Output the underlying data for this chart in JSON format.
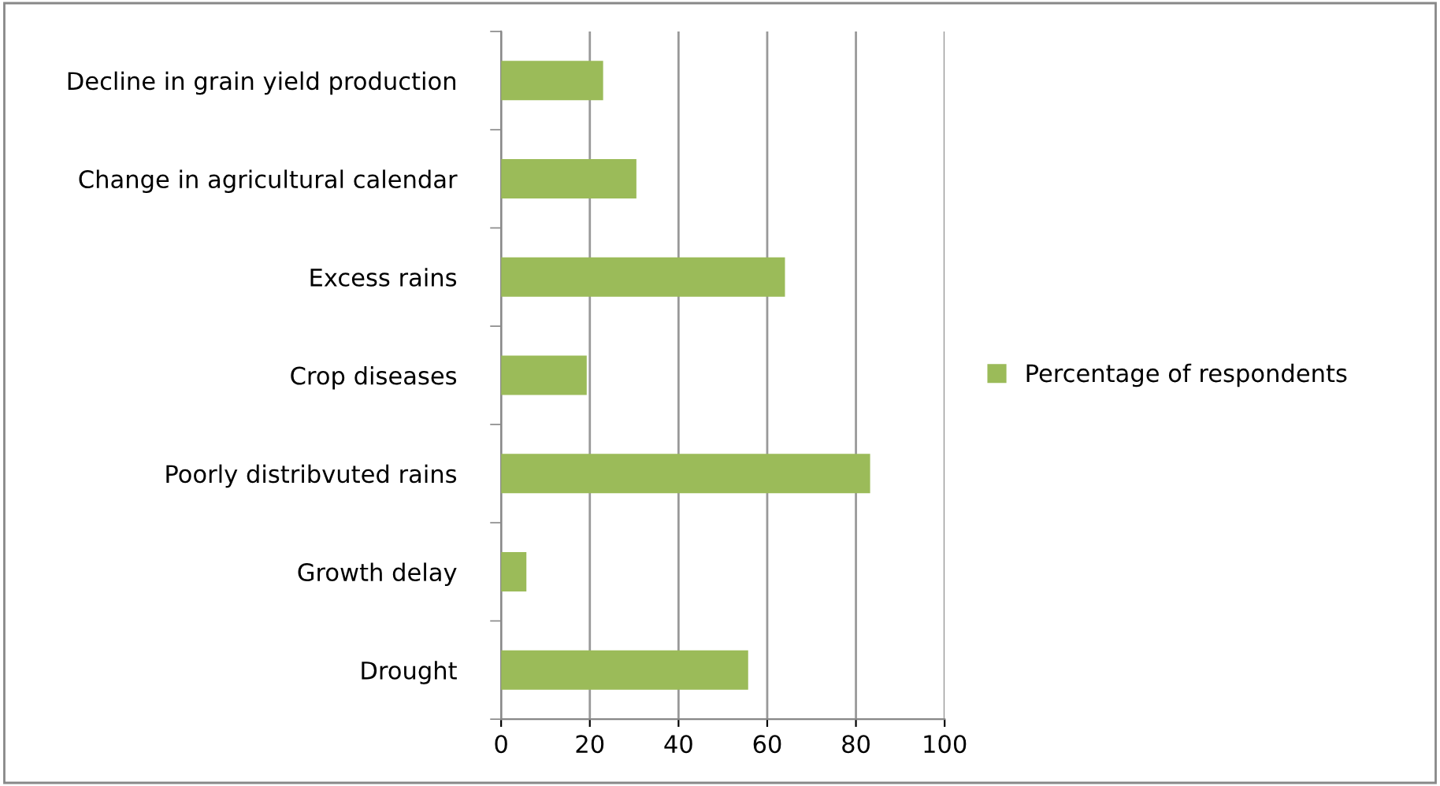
{
  "chart_data": {
    "type": "bar",
    "orientation": "horizontal",
    "categories": [
      "Decline in grain yield production",
      "Change in agricultural calendar",
      "Excess rains",
      "Crop diseases",
      "Poorly distribvuted rains",
      "Growth delay",
      "Drought"
    ],
    "series": [
      {
        "name": "Percentage of respondents",
        "color": "#9bbb59",
        "values": [
          23,
          30.5,
          64,
          19.3,
          83.2,
          5.7,
          55.7
        ]
      }
    ],
    "xlim": [
      0,
      100
    ],
    "xticks": [
      0,
      20,
      40,
      60,
      80,
      100
    ],
    "grid": "x",
    "legend": "right"
  }
}
